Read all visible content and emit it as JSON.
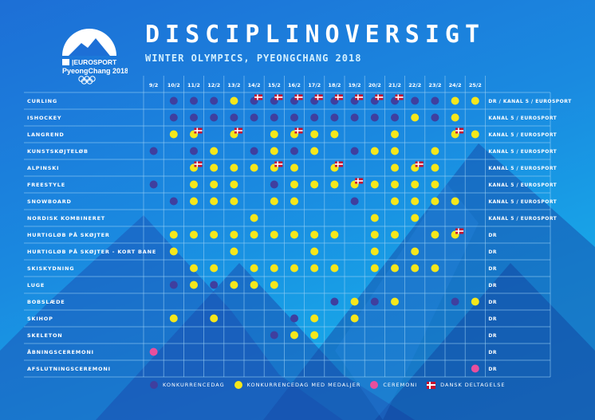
{
  "title": "DISCIPLINOVERSIGT",
  "subtitle": "WINTER OLYMPICS, PYEONGCHANG 2018",
  "logo": {
    "brand": "EUROSPORT",
    "event": "PyeongChang 2018"
  },
  "colors": {
    "konkurrence": "#3f3f9f",
    "medalje": "#f5e71b",
    "ceremoni": "#e84f9d",
    "grid_line": "#9fd3f5",
    "label": "#ffffff"
  },
  "dates": [
    "9/2",
    "10/2",
    "11/2",
    "12/2",
    "13/2",
    "14/2",
    "15/2",
    "16/2",
    "17/2",
    "18/2",
    "19/2",
    "20/2",
    "21/2",
    "22/2",
    "23/2",
    "24/2",
    "25/2"
  ],
  "rows": [
    {
      "name": "CURLING",
      "channel": "DR / KANAL 5 / EUROSPORT",
      "marks": [
        "",
        "k",
        "k",
        "k",
        "m",
        "k+d",
        "k+d",
        "k+d",
        "k+d",
        "k+d",
        "k+d",
        "k+d",
        "k+d",
        "k",
        "k",
        "m",
        "m"
      ]
    },
    {
      "name": "ISHOCKEY",
      "channel": "KANAL 5 / EUROSPORT",
      "marks": [
        "",
        "k",
        "k",
        "k",
        "k",
        "k",
        "k",
        "k",
        "k",
        "k",
        "k",
        "k",
        "k",
        "m",
        "k",
        "m",
        ""
      ]
    },
    {
      "name": "LANGREND",
      "channel": "KANAL 5 / EUROSPORT",
      "marks": [
        "",
        "m",
        "m+d",
        "",
        "m+d",
        "",
        "m",
        "m+d",
        "m",
        "m",
        "",
        "",
        "m",
        "",
        "",
        "m+d",
        "m"
      ]
    },
    {
      "name": "KUNSTSKØJTELØB",
      "channel": "KANAL 5 / EUROSPORT",
      "marks": [
        "k",
        "",
        "k",
        "m",
        "",
        "k",
        "m",
        "k",
        "m",
        "",
        "k",
        "m",
        "m",
        "",
        "m",
        "",
        ""
      ]
    },
    {
      "name": "ALPINSKI",
      "channel": "KANAL 5 / EUROSPORT",
      "marks": [
        "",
        "",
        "m+d",
        "m",
        "m",
        "m",
        "m+d",
        "m",
        "",
        "m+d",
        "",
        "",
        "m",
        "m+d",
        "m",
        "",
        ""
      ]
    },
    {
      "name": "FREESTYLE",
      "channel": "KANAL 5 / EUROSPORT",
      "marks": [
        "k",
        "",
        "m",
        "m",
        "m",
        "",
        "k",
        "m",
        "m",
        "m",
        "m+d",
        "m",
        "m",
        "m",
        "m",
        "",
        ""
      ]
    },
    {
      "name": "SNOWBOARD",
      "channel": "KANAL 5 / EUROSPORT",
      "marks": [
        "",
        "k",
        "m",
        "m",
        "m",
        "",
        "m",
        "m",
        "",
        "",
        "k",
        "",
        "m",
        "m",
        "m",
        "m",
        ""
      ]
    },
    {
      "name": "NORDISK KOMBINERET",
      "channel": "KANAL 5 / EUROSPORT",
      "marks": [
        "",
        "",
        "",
        "",
        "",
        "m",
        "",
        "",
        "",
        "",
        "",
        "m",
        "",
        "m",
        "",
        "",
        ""
      ]
    },
    {
      "name": "HURTIGLØB PÅ SKØJTER",
      "channel": "DR",
      "marks": [
        "",
        "m",
        "m",
        "m",
        "m",
        "m",
        "m",
        "m",
        "m",
        "m",
        "",
        "m",
        "m",
        "",
        "m",
        "m+d",
        ""
      ]
    },
    {
      "name": "HURTIGLØB PÅ SKØJTER - KORT BANE",
      "channel": "DR",
      "marks": [
        "",
        "m",
        "",
        "",
        "m",
        "",
        "",
        "",
        "m",
        "",
        "",
        "m",
        "",
        "m",
        "",
        "",
        ""
      ]
    },
    {
      "name": "SKISKYDNING",
      "channel": "DR",
      "marks": [
        "",
        "",
        "m",
        "m",
        "",
        "m",
        "m",
        "m",
        "m",
        "m",
        "",
        "m",
        "m",
        "m",
        "m",
        "",
        ""
      ]
    },
    {
      "name": "LUGE",
      "channel": "DR",
      "marks": [
        "",
        "k",
        "m",
        "k",
        "m",
        "m",
        "m",
        "",
        "",
        "",
        "",
        "",
        "",
        "",
        "",
        "",
        ""
      ]
    },
    {
      "name": "BOBSLÆDE",
      "channel": "DR",
      "marks": [
        "",
        "",
        "",
        "",
        "",
        "",
        "",
        "",
        "",
        "k",
        "m",
        "k",
        "m",
        "",
        "",
        "k",
        "m"
      ]
    },
    {
      "name": "SKIHOP",
      "channel": "DR",
      "marks": [
        "",
        "m",
        "",
        "m",
        "",
        "",
        "",
        "k",
        "m",
        "",
        "m",
        "",
        "",
        "",
        "",
        "",
        ""
      ]
    },
    {
      "name": "SKELETON",
      "channel": "DR",
      "marks": [
        "",
        "",
        "",
        "",
        "",
        "",
        "k",
        "m",
        "m",
        "",
        "",
        "",
        "",
        "",
        "",
        "",
        ""
      ]
    },
    {
      "name": "ÅBNINGSCEREMONI",
      "channel": "DR",
      "marks": [
        "c",
        "",
        "",
        "",
        "",
        "",
        "",
        "",
        "",
        "",
        "",
        "",
        "",
        "",
        "",
        "",
        ""
      ]
    },
    {
      "name": "AFSLUTNINGSCEREMONI",
      "channel": "DR",
      "marks": [
        "",
        "",
        "",
        "",
        "",
        "",
        "",
        "",
        "",
        "",
        "",
        "",
        "",
        "",
        "",
        "",
        "c"
      ]
    }
  ],
  "legend": {
    "konkurrence": "KONKURRENCEDAG",
    "medalje": "KONKURRENCEDAG MED MEDALJER",
    "ceremoni": "CEREMONI",
    "dansk": "DANSK DELTAGELSE"
  }
}
